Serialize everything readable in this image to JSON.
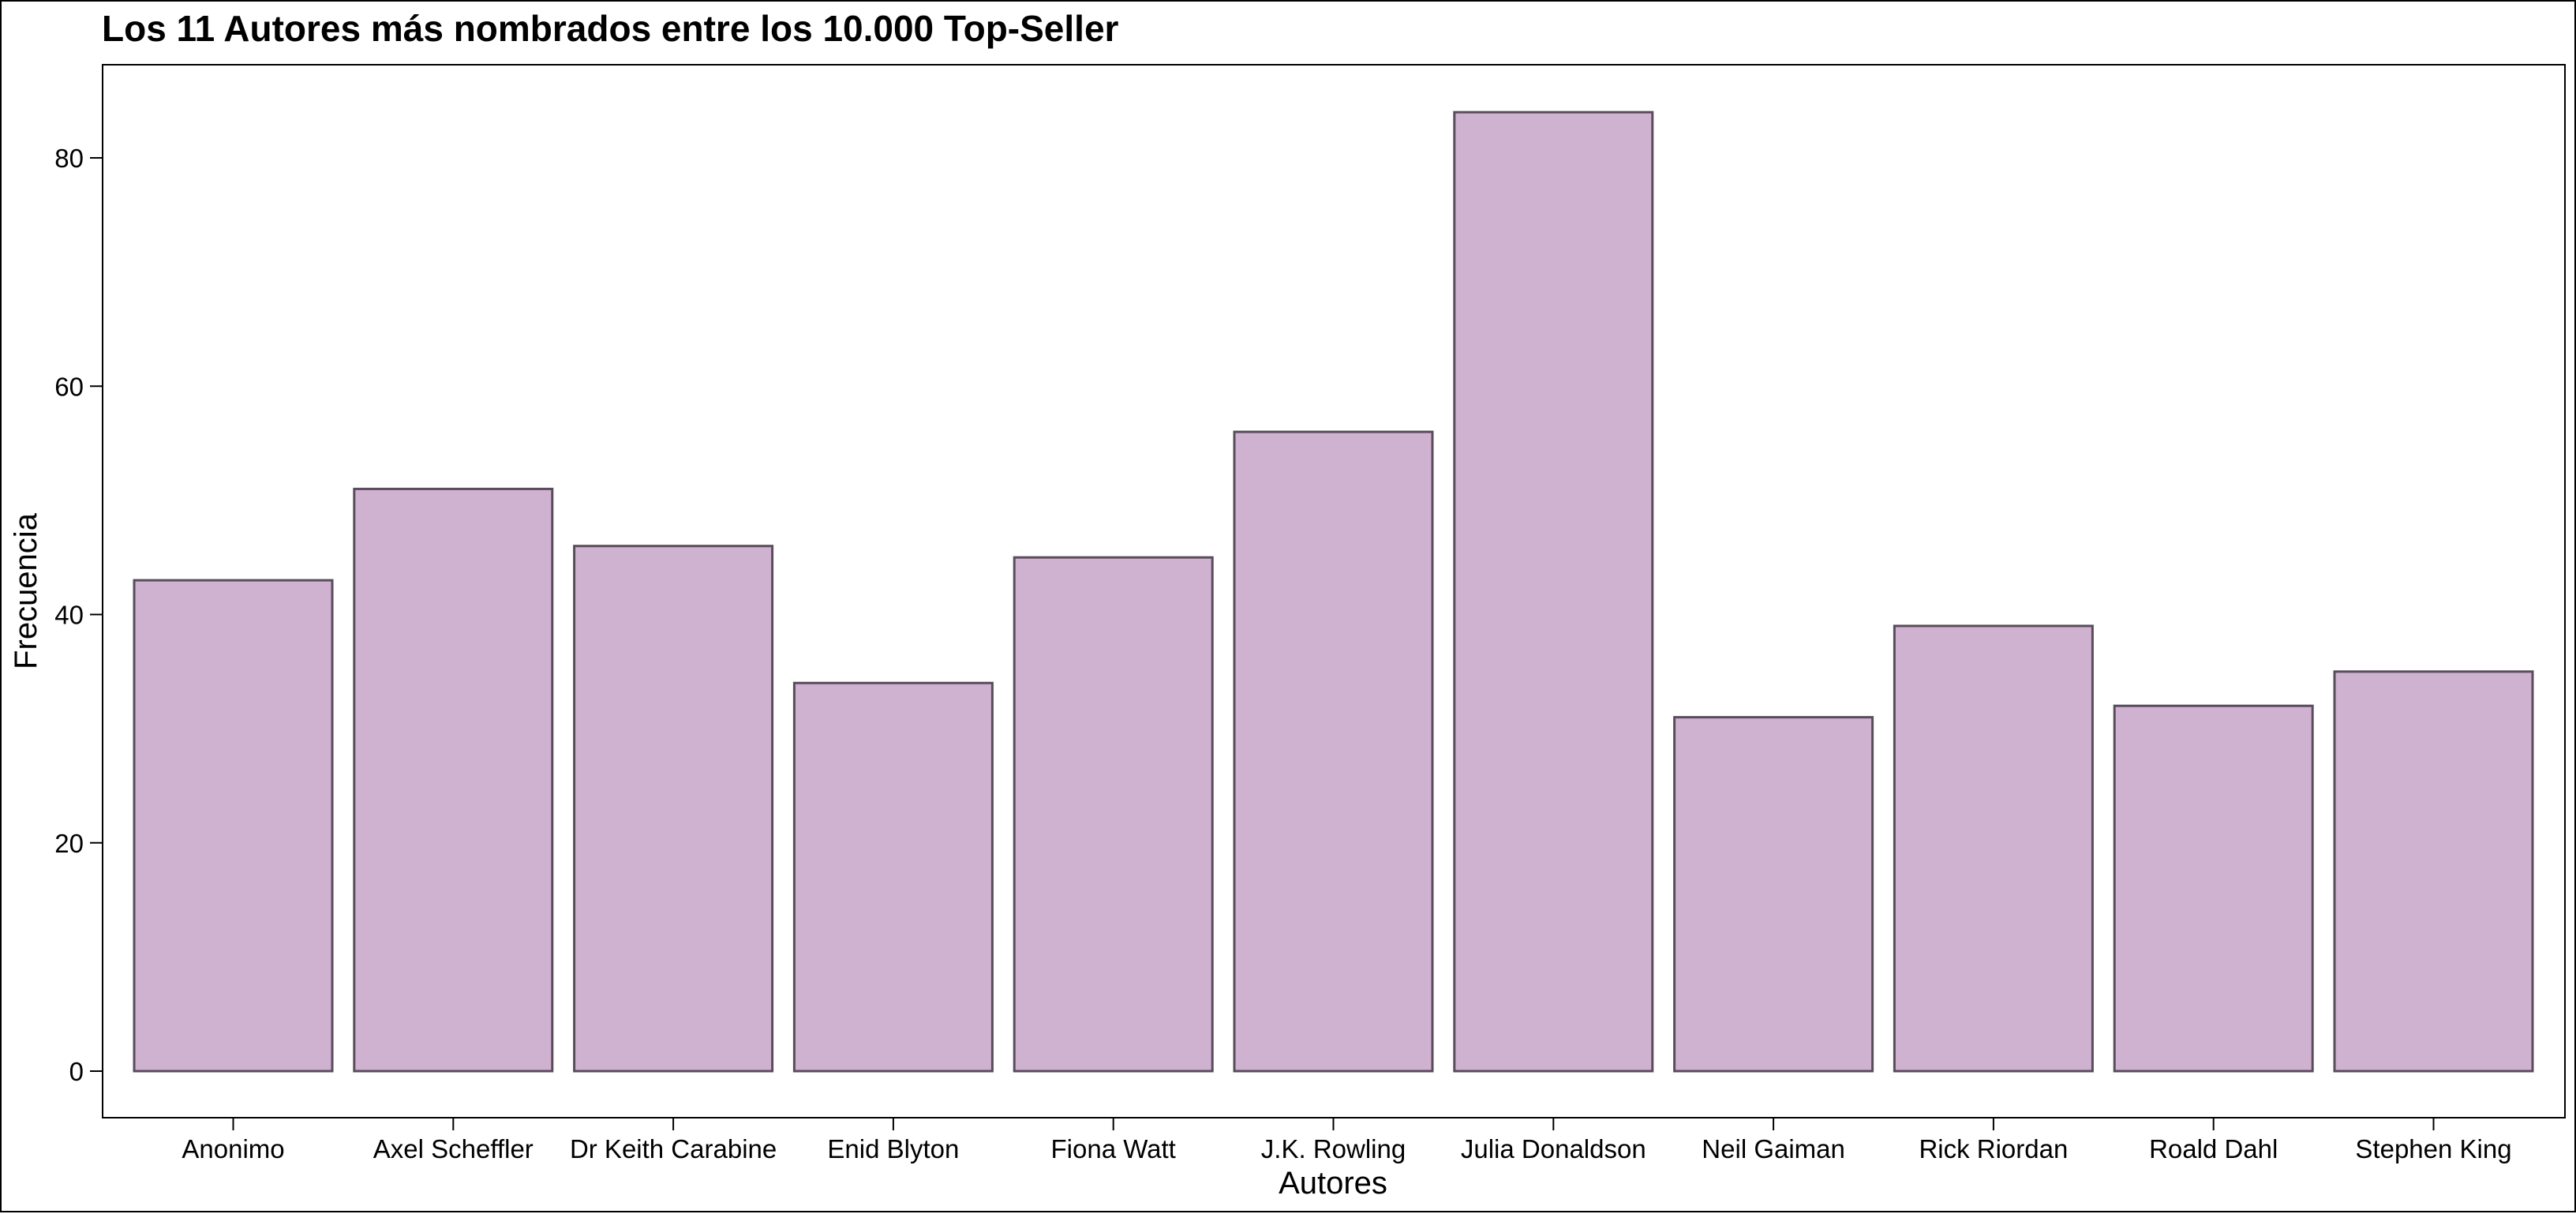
{
  "chart_data": {
    "type": "bar",
    "title": "Los 11 Autores más nombrados entre los 10.000 Top-Seller",
    "xlabel": "Autores",
    "ylabel": "Frecuencia",
    "categories": [
      "Anonimo",
      "Axel Scheffler",
      "Dr Keith Carabine",
      "Enid Blyton",
      "Fiona Watt",
      "J.K. Rowling",
      "Julia Donaldson",
      "Neil Gaiman",
      "Rick Riordan",
      "Roald Dahl",
      "Stephen King"
    ],
    "values": [
      43,
      51,
      46,
      34,
      45,
      56,
      84,
      31,
      39,
      32,
      35
    ],
    "y_ticks": [
      0,
      20,
      40,
      60,
      80
    ],
    "ylim": [
      0,
      88.2
    ],
    "bar_color": "#cfb1d0",
    "bar_edge_color": "#5a4c5c",
    "grid": false,
    "legend": "none"
  }
}
